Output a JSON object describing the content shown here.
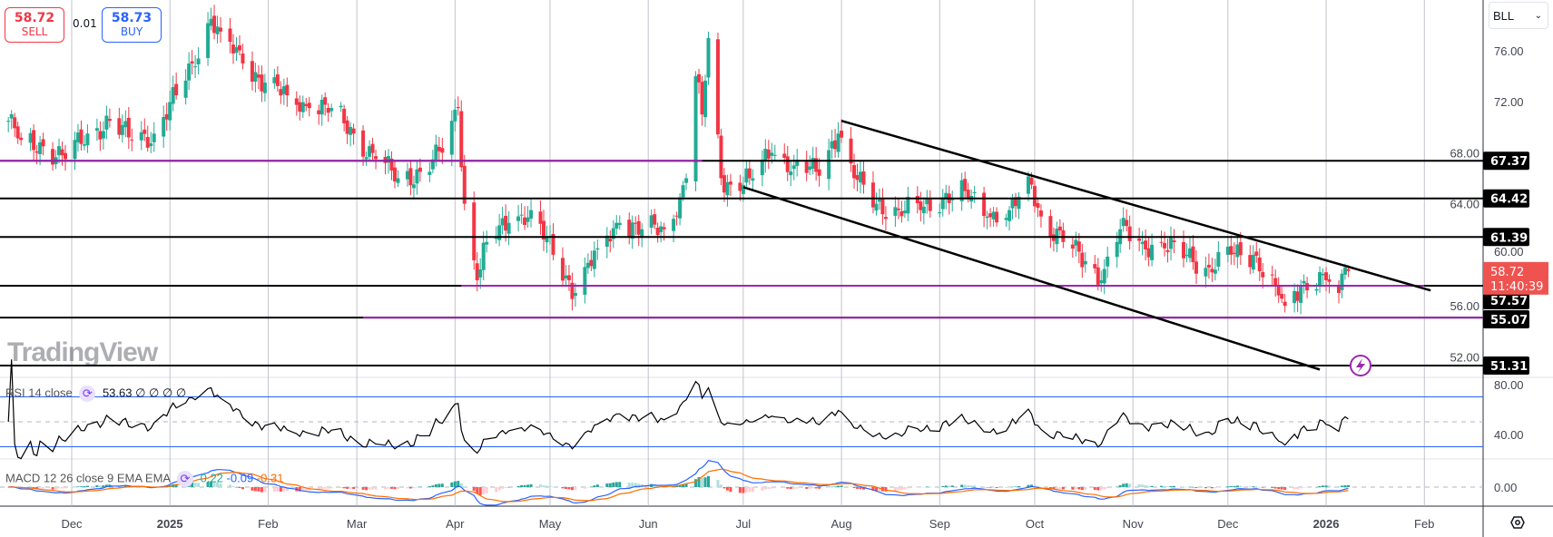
{
  "trade": {
    "sell_price": "58.72",
    "sell_label": "SELL",
    "buy_price": "58.73",
    "buy_label": "BUY",
    "spread": "0.01"
  },
  "symbol": {
    "name": "BLL",
    "chevron": "⌄"
  },
  "rsi_legend": {
    "title": "RSI 14 close",
    "value": "53.63",
    "extra": "∅ ∅ ∅ ∅"
  },
  "macd_legend": {
    "title": "MACD 12 26 close 9 EMA EMA",
    "hist": "0.22",
    "macd": "-0.09",
    "signal": "-0.31"
  },
  "watermark": "TradingView",
  "current": {
    "price": "58.72",
    "countdown": "11:40:39"
  },
  "colors": {
    "up": "#22ab94",
    "down": "#f23645",
    "purple": "#9c27b0",
    "band": "#2962ff",
    "macd": "#2962ff",
    "signal": "#ff6d00"
  },
  "chart_data": {
    "type": "candlestick",
    "price_ticks": [
      "76.00",
      "72.00",
      "68.00",
      "64.00",
      "60.00",
      "56.00",
      "52.00"
    ],
    "rsi_ticks": [
      "80.00",
      "40.00"
    ],
    "macd_ticks": [
      "0.00"
    ],
    "time_labels": [
      {
        "label": "Dec",
        "date": "2024-12-01"
      },
      {
        "label": "2025",
        "date": "2025-01-01",
        "bold": true
      },
      {
        "label": "Feb",
        "date": "2025-02-01"
      },
      {
        "label": "Mar",
        "date": "2025-03-01"
      },
      {
        "label": "Apr",
        "date": "2025-04-01"
      },
      {
        "label": "May",
        "date": "2025-05-01"
      },
      {
        "label": "Jun",
        "date": "2025-06-01"
      },
      {
        "label": "Jul",
        "date": "2025-07-01"
      },
      {
        "label": "Aug",
        "date": "2025-08-01"
      },
      {
        "label": "Sep",
        "date": "2025-09-01"
      },
      {
        "label": "Oct",
        "date": "2025-10-01"
      },
      {
        "label": "Nov",
        "date": "2025-11-01"
      },
      {
        "label": "Dec",
        "date": "2025-12-01"
      },
      {
        "label": "2026",
        "date": "2026-01-01",
        "bold": true
      },
      {
        "label": "Feb",
        "date": "2026-02-01"
      }
    ],
    "close_anchors": [
      [
        "2024-11-11",
        70.5
      ],
      [
        "2024-11-15",
        69
      ],
      [
        "2024-11-22",
        68.5
      ],
      [
        "2024-11-29",
        67.5
      ],
      [
        "2024-12-06",
        69.5
      ],
      [
        "2024-12-13",
        70.5
      ],
      [
        "2024-12-20",
        69
      ],
      [
        "2024-12-27",
        69.5
      ],
      [
        "2025-01-03",
        72.5
      ],
      [
        "2025-01-08",
        75
      ],
      [
        "2025-01-14",
        78.5
      ],
      [
        "2025-01-17",
        77.5
      ],
      [
        "2025-01-24",
        75
      ],
      [
        "2025-01-31",
        73.5
      ],
      [
        "2025-02-07",
        72.5
      ],
      [
        "2025-02-14",
        71.5
      ],
      [
        "2025-02-21",
        71.5
      ],
      [
        "2025-02-28",
        69.5
      ],
      [
        "2025-03-07",
        67.5
      ],
      [
        "2025-03-14",
        66
      ],
      [
        "2025-03-21",
        66.5
      ],
      [
        "2025-03-28",
        68
      ],
      [
        "2025-04-02",
        71.5
      ],
      [
        "2025-04-04",
        64
      ],
      [
        "2025-04-08",
        58
      ],
      [
        "2025-04-11",
        61
      ],
      [
        "2025-04-18",
        62.5
      ],
      [
        "2025-04-25",
        63.5
      ],
      [
        "2025-05-02",
        60
      ],
      [
        "2025-05-09",
        57
      ],
      [
        "2025-05-16",
        60.5
      ],
      [
        "2025-05-23",
        62.5
      ],
      [
        "2025-05-30",
        62
      ],
      [
        "2025-06-06",
        62
      ],
      [
        "2025-06-11",
        64.5
      ],
      [
        "2025-06-13",
        66
      ],
      [
        "2025-06-16",
        74
      ],
      [
        "2025-06-18",
        71
      ],
      [
        "2025-06-20",
        77
      ],
      [
        "2025-06-24",
        66
      ],
      [
        "2025-06-27",
        65.5
      ],
      [
        "2025-07-03",
        66
      ],
      [
        "2025-07-10",
        68
      ],
      [
        "2025-07-17",
        67
      ],
      [
        "2025-07-24",
        66.5
      ],
      [
        "2025-07-31",
        69.5
      ],
      [
        "2025-08-05",
        66
      ],
      [
        "2025-08-12",
        64
      ],
      [
        "2025-08-19",
        63.5
      ],
      [
        "2025-08-26",
        63.5
      ],
      [
        "2025-09-02",
        64.5
      ],
      [
        "2025-09-09",
        65
      ],
      [
        "2025-09-16",
        63
      ],
      [
        "2025-09-23",
        63.5
      ],
      [
        "2025-09-30",
        65.5
      ],
      [
        "2025-10-03",
        63
      ],
      [
        "2025-10-10",
        61
      ],
      [
        "2025-10-17",
        59.5
      ],
      [
        "2025-10-22",
        58
      ],
      [
        "2025-10-28",
        62
      ],
      [
        "2025-11-04",
        61
      ],
      [
        "2025-11-11",
        60.5
      ],
      [
        "2025-11-18",
        60
      ],
      [
        "2025-11-25",
        59
      ],
      [
        "2025-12-02",
        60
      ],
      [
        "2025-12-09",
        60
      ],
      [
        "2025-12-16",
        57.5
      ],
      [
        "2025-12-19",
        56
      ],
      [
        "2025-12-24",
        57.5
      ],
      [
        "2025-12-31",
        58.5
      ],
      [
        "2026-01-05",
        57
      ],
      [
        "2026-01-07",
        59
      ],
      [
        "2026-01-08",
        58.72
      ]
    ],
    "horizontal_levels": [
      {
        "price": 67.37,
        "label": "67.37",
        "purple_until": "2025-06-18"
      },
      {
        "price": 64.42,
        "label": "64.42"
      },
      {
        "price": 61.39,
        "label": "61.39"
      },
      {
        "price": 57.57,
        "label": "57.57",
        "purple_from": "2025-04-03",
        "purple_to": "2026-02-01"
      },
      {
        "price": 55.07,
        "label": "55.07",
        "purple_from": "2025-03-03"
      },
      {
        "price": 51.31,
        "label": "51.31"
      }
    ],
    "trend_lines": [
      {
        "from": [
          "2025-08-01",
          70.5
        ],
        "to": [
          "2026-02-03",
          57.2
        ]
      },
      {
        "from": [
          "2025-07-01",
          65.3
        ],
        "to": [
          "2025-12-30",
          51.0
        ]
      }
    ],
    "rsi_bands": [
      70,
      50,
      30
    ]
  }
}
